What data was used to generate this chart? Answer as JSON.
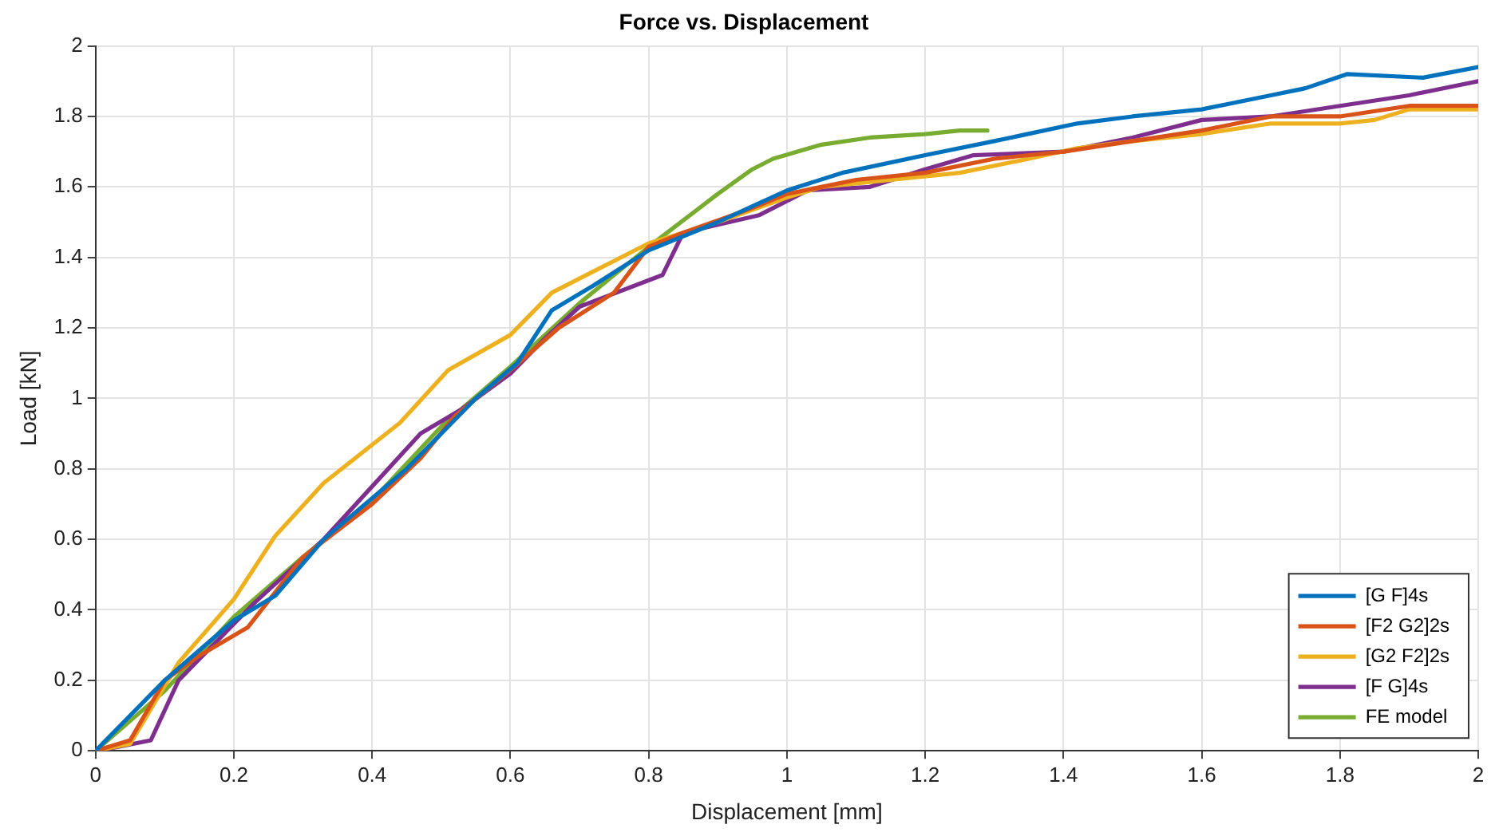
{
  "chart_data": {
    "type": "line",
    "title": "Force vs. Displacement",
    "xlabel": "Displacement [mm]",
    "ylabel": "Load [kN]",
    "xlim": [
      0,
      2
    ],
    "xticks": [
      0,
      0.2,
      0.4,
      0.6,
      0.8,
      1,
      1.2,
      1.4,
      1.6,
      1.8,
      2
    ],
    "ylim": [
      0,
      2
    ],
    "yticks": [
      0,
      0.2,
      0.4,
      0.6,
      0.8,
      1,
      1.2,
      1.4,
      1.6,
      1.8,
      2
    ],
    "grid": true,
    "legend": "bottom right",
    "marker": "none",
    "line_style": "solid",
    "series": [
      {
        "name": "[G F]4s",
        "color": "#0072bd",
        "x": [
          0,
          0.1,
          0.2,
          0.26,
          0.33,
          0.45,
          0.55,
          0.61,
          0.66,
          0.72,
          0.8,
          0.9,
          1.0,
          1.08,
          1.2,
          1.3,
          1.42,
          1.5,
          1.6,
          1.7,
          1.75,
          1.81,
          1.92,
          2.0
        ],
        "values": [
          0,
          0.2,
          0.37,
          0.44,
          0.6,
          0.8,
          1.0,
          1.1,
          1.25,
          1.32,
          1.42,
          1.5,
          1.59,
          1.64,
          1.69,
          1.73,
          1.78,
          1.8,
          1.82,
          1.86,
          1.88,
          1.92,
          1.91,
          1.94
        ]
      },
      {
        "name": "[F2 G2]2s",
        "color": "#d95319",
        "x": [
          0,
          0.05,
          0.1,
          0.15,
          0.22,
          0.3,
          0.4,
          0.47,
          0.52,
          0.6,
          0.67,
          0.75,
          0.8,
          0.85,
          0.95,
          1.0,
          1.1,
          1.2,
          1.3,
          1.4,
          1.5,
          1.6,
          1.7,
          1.8,
          1.9,
          2.0
        ],
        "values": [
          0,
          0.03,
          0.2,
          0.27,
          0.35,
          0.55,
          0.7,
          0.83,
          0.95,
          1.08,
          1.2,
          1.3,
          1.43,
          1.47,
          1.54,
          1.58,
          1.62,
          1.64,
          1.68,
          1.7,
          1.73,
          1.76,
          1.8,
          1.8,
          1.83,
          1.83
        ]
      },
      {
        "name": "[G2 F2]2s",
        "color": "#edb120",
        "x": [
          0,
          0.05,
          0.12,
          0.2,
          0.26,
          0.33,
          0.44,
          0.51,
          0.6,
          0.66,
          0.73,
          0.8,
          0.9,
          1.0,
          1.05,
          1.15,
          1.25,
          1.35,
          1.42,
          1.5,
          1.6,
          1.7,
          1.8,
          1.85,
          1.9,
          2.0
        ],
        "values": [
          0,
          0.02,
          0.25,
          0.43,
          0.61,
          0.76,
          0.93,
          1.08,
          1.18,
          1.3,
          1.37,
          1.44,
          1.5,
          1.57,
          1.6,
          1.62,
          1.64,
          1.68,
          1.71,
          1.73,
          1.75,
          1.78,
          1.78,
          1.79,
          1.82,
          1.82
        ]
      },
      {
        "name": "[F G]4s",
        "color": "#7e2f8e",
        "x": [
          0,
          0.03,
          0.08,
          0.12,
          0.17,
          0.23,
          0.33,
          0.47,
          0.53,
          0.6,
          0.65,
          0.7,
          0.78,
          0.82,
          0.85,
          0.96,
          1.03,
          1.12,
          1.2,
          1.27,
          1.4,
          1.5,
          1.6,
          1.7,
          1.8,
          1.9,
          2.0
        ],
        "values": [
          0,
          0.01,
          0.03,
          0.2,
          0.3,
          0.42,
          0.6,
          0.9,
          0.97,
          1.07,
          1.17,
          1.26,
          1.32,
          1.35,
          1.47,
          1.52,
          1.59,
          1.6,
          1.65,
          1.69,
          1.7,
          1.74,
          1.79,
          1.8,
          1.83,
          1.86,
          1.9
        ]
      },
      {
        "name": "FE model",
        "color": "#77ac30",
        "x": [
          0,
          0.1,
          0.2,
          0.3,
          0.4,
          0.5,
          0.6,
          0.7,
          0.8,
          0.9,
          0.95,
          0.98,
          1.05,
          1.12,
          1.2,
          1.25,
          1.29
        ],
        "values": [
          0,
          0.17,
          0.38,
          0.55,
          0.71,
          0.92,
          1.09,
          1.27,
          1.43,
          1.58,
          1.65,
          1.68,
          1.72,
          1.74,
          1.75,
          1.76,
          1.76
        ]
      }
    ]
  }
}
